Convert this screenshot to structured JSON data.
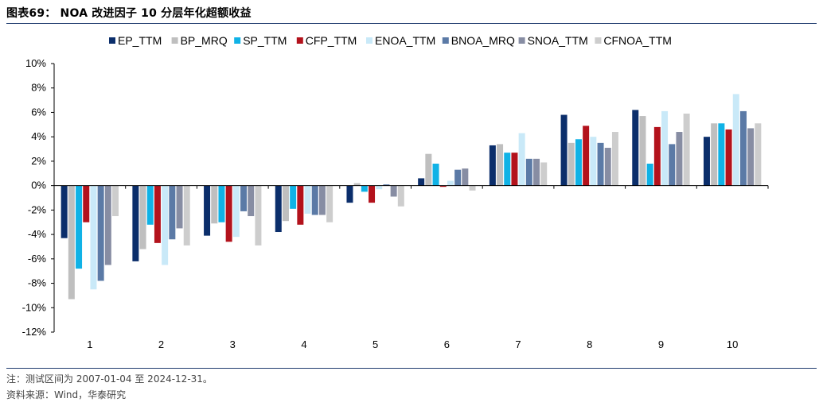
{
  "header": {
    "title": "图表69： NOA 改进因子 10 分层年化超额收益"
  },
  "footer": {
    "note": "注：测试区间为 2007-01-04 至 2024-12-31。",
    "source": "资料来源：Wind，华泰研究"
  },
  "chart_data": {
    "type": "bar",
    "title": "",
    "xlabel": "",
    "ylabel": "",
    "ylim": [
      -12,
      10
    ],
    "ytick_step": 2,
    "ytick_format": "percent",
    "legend_position": "top",
    "categories": [
      "1",
      "2",
      "3",
      "4",
      "5",
      "6",
      "7",
      "8",
      "9",
      "10"
    ],
    "series": [
      {
        "name": "EP_TTM",
        "color": "#0b2e6b",
        "values": [
          -4.3,
          -6.2,
          -4.1,
          -3.8,
          -1.4,
          0.6,
          3.3,
          5.8,
          6.2,
          4.0
        ]
      },
      {
        "name": "BP_MRQ",
        "color": "#bfbfbf",
        "values": [
          -9.3,
          -5.2,
          -3.1,
          -2.9,
          0.2,
          2.6,
          3.4,
          3.5,
          5.7,
          5.1
        ]
      },
      {
        "name": "SP_TTM",
        "color": "#10b2e6",
        "values": [
          -6.8,
          -3.2,
          -3.0,
          -1.9,
          -0.5,
          1.8,
          2.7,
          3.8,
          1.8,
          5.1
        ]
      },
      {
        "name": "CFP_TTM",
        "color": "#b3121c",
        "values": [
          -3.0,
          -4.7,
          -4.6,
          -3.2,
          -1.4,
          -0.1,
          2.7,
          4.9,
          4.8,
          4.6
        ]
      },
      {
        "name": "ENOA_TTM",
        "color": "#c9e9f8",
        "values": [
          -8.5,
          -6.5,
          -4.2,
          -2.3,
          -0.3,
          0.4,
          4.3,
          4.0,
          6.1,
          7.5
        ]
      },
      {
        "name": "BNOA_MRQ",
        "color": "#5b7aa6",
        "values": [
          -7.8,
          -4.4,
          -2.1,
          -2.4,
          0.1,
          1.3,
          2.2,
          3.5,
          3.4,
          6.1
        ]
      },
      {
        "name": "SNOA_TTM",
        "color": "#878da3",
        "values": [
          -6.5,
          -3.5,
          -2.5,
          -2.4,
          -0.9,
          1.4,
          2.2,
          3.1,
          4.4,
          4.7
        ]
      },
      {
        "name": "CFNOA_TTM",
        "color": "#cdcdcd",
        "values": [
          -2.5,
          -4.9,
          -4.9,
          -3.0,
          -1.7,
          -0.4,
          1.9,
          4.4,
          5.9,
          5.1
        ]
      }
    ]
  }
}
